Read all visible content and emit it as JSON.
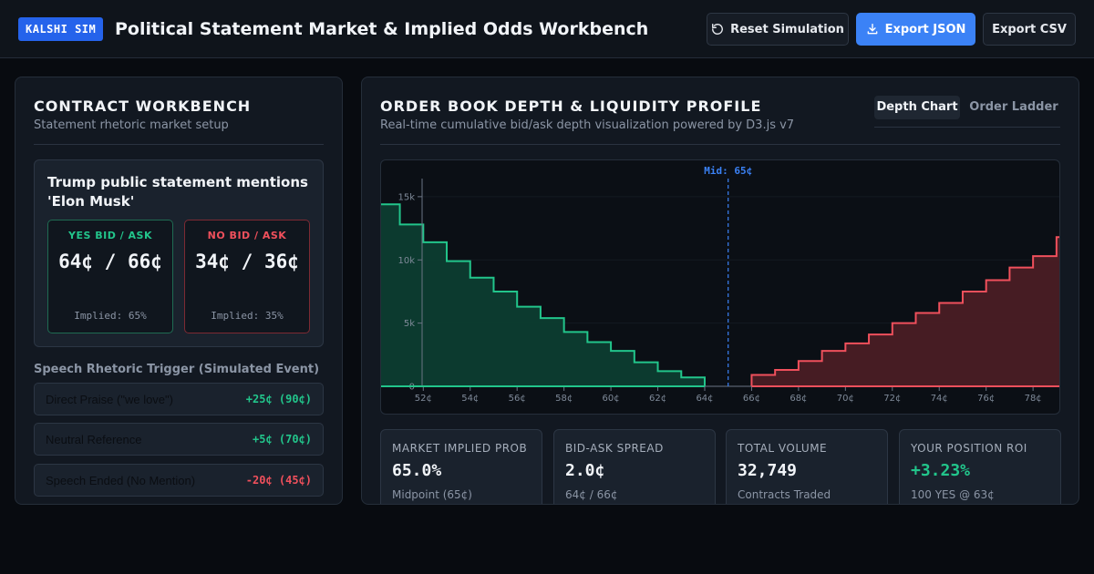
{
  "header": {
    "brand": "KALSHI SIM",
    "title": "Political Statement Market & Implied Odds Workbench",
    "reset_label": "Reset Simulation",
    "export_json_label": "Export JSON",
    "export_csv_label": "Export CSV",
    "reset_icon": "refresh-icon",
    "export_icon": "download-icon"
  },
  "workbench": {
    "title": "CONTRACT WORKBENCH",
    "subtitle": "Statement rhetoric market setup",
    "contract_title": "Trump public statement mentions 'Elon Musk'",
    "yes": {
      "label": "YES BID / ASK",
      "price": "64¢ / 66¢",
      "implied": "Implied: 65%"
    },
    "no": {
      "label": "NO BID / ASK",
      "price": "34¢ / 36¢",
      "implied": "Implied: 35%"
    },
    "trigger_heading": "Speech Rhetoric Trigger (Simulated Event)",
    "triggers": [
      {
        "label": "Direct Praise (\"we love\")",
        "delta": "+25¢ (90¢)"
      },
      {
        "label": "Neutral Reference",
        "delta": "+5¢ (70¢)"
      },
      {
        "label": "Speech Ended (No Mention)",
        "delta": "-20¢ (45¢)"
      }
    ]
  },
  "orderbook": {
    "title": "ORDER BOOK DEPTH & LIQUIDITY PROFILE",
    "subtitle": "Real-time cumulative bid/ask depth visualization powered by D3.js v7",
    "tabs": [
      {
        "label": "Depth Chart"
      },
      {
        "label": "Order Ladder"
      }
    ],
    "stats": [
      {
        "label": "MARKET IMPLIED PROB",
        "value": "65.0%",
        "foot": "Midpoint (65¢)"
      },
      {
        "label": "BID-ASK SPREAD",
        "value": "2.0¢",
        "foot": "64¢ / 66¢"
      },
      {
        "label": "TOTAL VOLUME",
        "value": "32,749",
        "foot": "Contracts Traded"
      },
      {
        "label": "YOUR POSITION ROI",
        "value": "+3.23%",
        "foot": "100 YES @ 63¢"
      }
    ]
  },
  "colors": {
    "accent": "#3b82f6",
    "yes": "#22c58b",
    "no": "#f0505c",
    "bid_fill": "#0d3d30",
    "ask_fill": "#4a1d24"
  },
  "chart_data": {
    "type": "area",
    "mid_label": "Mid: 65¢",
    "mid": 65,
    "x_ticks": [
      "52¢",
      "54¢",
      "56¢",
      "58¢",
      "60¢",
      "62¢",
      "64¢",
      "66¢",
      "68¢",
      "70¢",
      "72¢",
      "74¢",
      "76¢",
      "78¢"
    ],
    "x_tick_values": [
      52,
      54,
      56,
      58,
      60,
      62,
      64,
      66,
      68,
      70,
      72,
      74,
      76,
      78
    ],
    "y_ticks": [
      "0",
      "5k",
      "10k",
      "15k"
    ],
    "y_tick_values": [
      0,
      5000,
      10000,
      15000
    ],
    "xlim": [
      50.2,
      79.2
    ],
    "ylim": [
      0,
      17300
    ],
    "series": [
      {
        "side": "bid",
        "x": [
          50,
          51,
          52,
          53,
          54,
          55,
          56,
          57,
          58,
          59,
          60,
          61,
          62,
          63,
          64
        ],
        "depth": [
          14400,
          12800,
          11400,
          9900,
          8600,
          7500,
          6300,
          5400,
          4300,
          3500,
          2800,
          1900,
          1200,
          700,
          0
        ]
      },
      {
        "side": "ask",
        "x": [
          66,
          67,
          68,
          69,
          70,
          71,
          72,
          73,
          74,
          75,
          76,
          77,
          78,
          79,
          80
        ],
        "depth": [
          900,
          1300,
          2000,
          2800,
          3400,
          4100,
          5000,
          5800,
          6600,
          7500,
          8400,
          9400,
          10300,
          11800,
          13200
        ]
      }
    ]
  }
}
